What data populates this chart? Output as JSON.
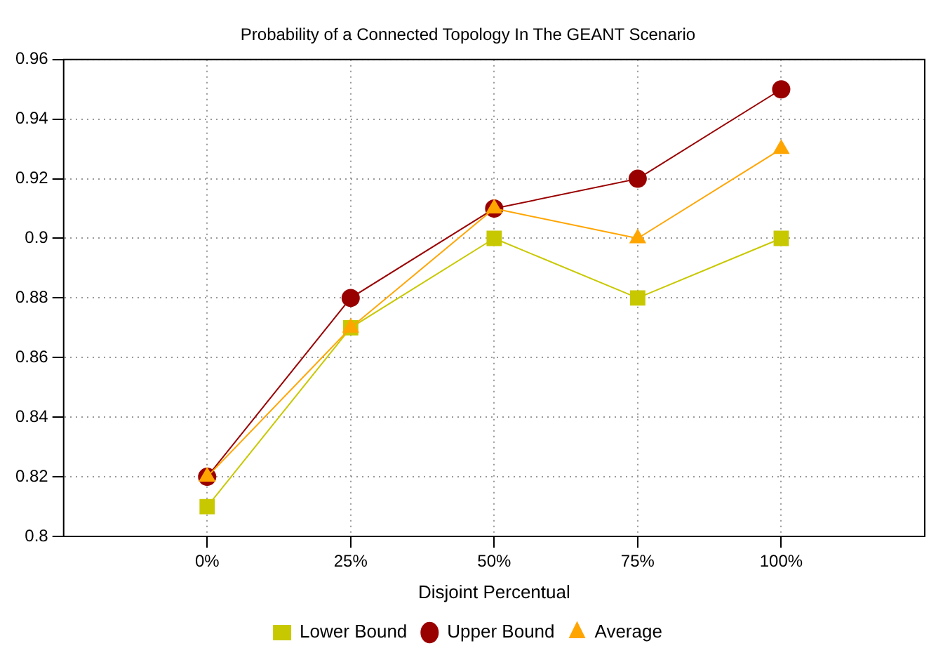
{
  "chart_data": {
    "type": "line",
    "title": "Probability of a Connected Topology In The GEANT Scenario",
    "xlabel": "Disjoint Percentual",
    "x": [
      0,
      25,
      50,
      75,
      100
    ],
    "xlim": [
      -25,
      125
    ],
    "xticks": [
      {
        "value": 0,
        "label": "0%"
      },
      {
        "value": 25,
        "label": "25%"
      },
      {
        "value": 50,
        "label": "50%"
      },
      {
        "value": 75,
        "label": "75%"
      },
      {
        "value": 100,
        "label": "100%"
      }
    ],
    "ylim": [
      0.8,
      0.96
    ],
    "yticks": [
      0.8,
      0.82,
      0.84,
      0.86,
      0.88,
      0.9,
      0.92,
      0.94,
      0.96
    ],
    "grid": true,
    "legend": "bottom",
    "line_style": "solid",
    "series": [
      {
        "name": "Lower Bound",
        "color": "#c8c800",
        "marker": "square",
        "values": [
          0.81,
          0.87,
          0.9,
          0.88,
          0.9
        ]
      },
      {
        "name": "Upper Bound",
        "color": "#990000",
        "marker": "circle",
        "values": [
          0.82,
          0.88,
          0.91,
          0.92,
          0.95
        ]
      },
      {
        "name": "Average",
        "color": "#ffa500",
        "marker": "triangle",
        "values": [
          0.82,
          0.87,
          0.91,
          0.9,
          0.93
        ]
      }
    ]
  }
}
